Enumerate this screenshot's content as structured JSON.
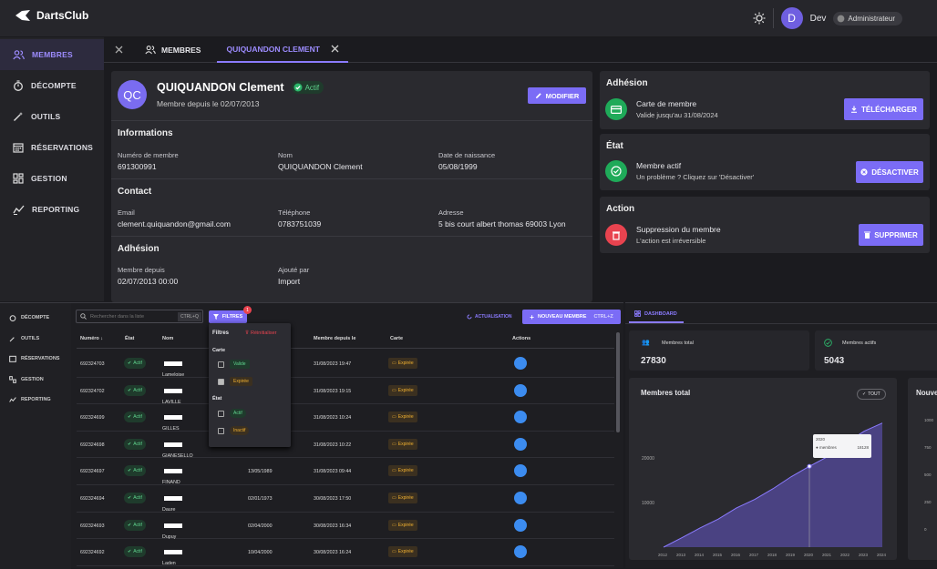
{
  "app": {
    "name": "DartsClub",
    "user": "Dev",
    "user_initial": "D",
    "role": "Administrateur"
  },
  "sidebar": {
    "items": [
      {
        "label": "MEMBRES"
      },
      {
        "label": "DÉCOMPTE"
      },
      {
        "label": "OUTILS"
      },
      {
        "label": "RÉSERVATIONS"
      },
      {
        "label": "GESTION"
      },
      {
        "label": "REPORTING"
      }
    ]
  },
  "tabs": [
    {
      "label": "MEMBRES"
    },
    {
      "label": "QUIQUANDON CLEMENT"
    }
  ],
  "profile": {
    "initials": "QC",
    "name": "QUIQUANDON Clement",
    "status": "Actif",
    "since": "Membre depuis le 02/07/2013",
    "edit_label": "MODIFIER",
    "info_title": "Informations",
    "member_no_label": "Numéro de membre",
    "member_no": "691300991",
    "name_label": "Nom",
    "name_value": "QUIQUANDON Clement",
    "birth_label": "Date de naissance",
    "birth": "05/08/1999",
    "contact_title": "Contact",
    "email_label": "Email",
    "email": "clement.quiquandon@gmail.com",
    "phone_label": "Téléphone",
    "phone": "0783751039",
    "address_label": "Adresse",
    "address": "5 bis court albert thomas 69003 Lyon",
    "membership_title": "Adhésion",
    "member_since_label": "Membre depuis",
    "member_since": "02/07/2013 00:00",
    "added_by_label": "Ajouté par",
    "added_by": "Import"
  },
  "right": {
    "adhesion_title": "Adhésion",
    "card_title": "Carte de membre",
    "card_sub": "Valide jusqu'au 31/08/2024",
    "download_label": "TÉLÉCHARGER",
    "etat_title": "État",
    "active_title": "Membre actif",
    "active_sub": "Un problème ? Cliquez sur 'Désactiver'",
    "deactivate_label": "DÉSACTIVER",
    "action_title": "Action",
    "delete_title": "Suppression du membre",
    "delete_sub": "L'action est irréversible",
    "delete_label": "SUPPRIMER",
    "colors": {
      "green": "#1faa59",
      "red": "#e8434f",
      "accent": "#7b6cf6"
    }
  },
  "list": {
    "sidebar": [
      {
        "label": "DÉCOMPTE"
      },
      {
        "label": "OUTILS"
      },
      {
        "label": "RÉSERVATIONS"
      },
      {
        "label": "GESTION"
      },
      {
        "label": "REPORTING"
      }
    ],
    "search_placeholder": "Rechercher dans la liste",
    "search_shortcut": "CTRL+Q",
    "filters_label": "FILTRES",
    "filters_count": "1",
    "refresh_label": "ACTUALISATION",
    "new_label": "NOUVEAU MEMBRE",
    "new_shortcut": "CTRL+Z",
    "columns": {
      "number": "Numéro",
      "status": "État",
      "name": "Nom",
      "since": "Membre depuis le",
      "card": "Carte",
      "actions": "Actions"
    },
    "filters": {
      "title": "Filtres",
      "reset": "Réinitialiser",
      "card_group": "Carte",
      "valid": "Valide",
      "expired": "Expirée",
      "state_group": "État",
      "active": "Actif",
      "inactive": "Inactif"
    },
    "rows": [
      {
        "number": "692324703",
        "status": "Actif",
        "name": "Lameloise",
        "birth": "",
        "since": "31/08/2023 19:47",
        "card": "Expirée"
      },
      {
        "number": "692324702",
        "status": "Actif",
        "name": "LAVILLE",
        "birth": "",
        "since": "31/08/2023 19:15",
        "card": "Expirée"
      },
      {
        "number": "692324699",
        "status": "Actif",
        "name": "GILLES",
        "birth": "",
        "since": "31/08/2023 10:24",
        "card": "Expirée"
      },
      {
        "number": "692324698",
        "status": "Actif",
        "name": "GIANESELLO",
        "birth": "",
        "since": "31/08/2023 10:22",
        "card": "Expirée"
      },
      {
        "number": "692324697",
        "status": "Actif",
        "name": "FINAND",
        "birth": "13/05/1989",
        "since": "31/08/2023 09:44",
        "card": "Expirée"
      },
      {
        "number": "692324694",
        "status": "Actif",
        "name": "Daure",
        "birth": "02/01/1973",
        "since": "30/08/2023 17:50",
        "card": "Expirée"
      },
      {
        "number": "692324693",
        "status": "Actif",
        "name": "Dupuy",
        "birth": "02/04/2000",
        "since": "30/08/2023 16:34",
        "card": "Expirée"
      },
      {
        "number": "692324692",
        "status": "Actif",
        "name": "Laden",
        "birth": "10/04/2000",
        "since": "30/08/2023 16:24",
        "card": "Expirée"
      }
    ]
  },
  "dashboard": {
    "tab": "DASHBOARD",
    "total_label": "Membres total",
    "total": "27830",
    "active_label": "Membres actifs",
    "active": "5043",
    "chart_title": "Membres total",
    "chip": "TOUT",
    "next_title": "Nouve",
    "tooltip_year": "2020",
    "tooltip_label": "membres",
    "tooltip_value": "18128"
  },
  "chart_data": {
    "type": "area",
    "title": "Membres total",
    "x": [
      "2012",
      "2013",
      "2014",
      "2015",
      "2016",
      "2017",
      "2018",
      "2019",
      "2020",
      "2021",
      "2022",
      "2023",
      "2024"
    ],
    "values": [
      0,
      2100,
      4300,
      6300,
      8800,
      10700,
      13100,
      15800,
      18128,
      20300,
      23400,
      26000,
      27830
    ],
    "yticks": [
      10000,
      20000
    ],
    "ylim": [
      0,
      29000
    ]
  },
  "chart_data_2_yticks": [
    "1000",
    "750",
    "500",
    "250",
    "0"
  ]
}
